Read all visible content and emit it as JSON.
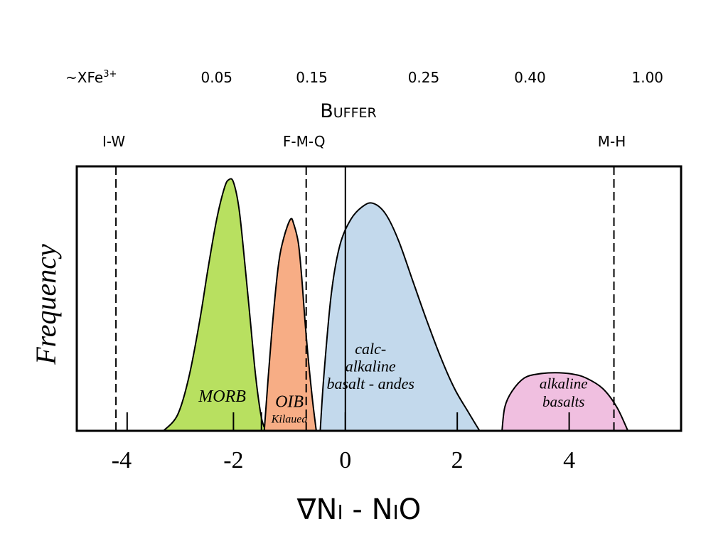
{
  "chart_data": {
    "type": "area",
    "title": "",
    "xlabel": "∇Ni - NiO",
    "ylabel": "Frequency",
    "xlim": [
      -4.8,
      6
    ],
    "ylim": [
      0,
      1
    ],
    "x_ticks": [
      -4,
      -2,
      0,
      2,
      4
    ],
    "minor_ticks": [
      -3.9,
      -2,
      -1.5,
      0,
      2,
      4
    ],
    "top_axis": {
      "label_prefix": "~XFe",
      "label_sup": "3+",
      "ticks": [
        {
          "x": -2.3,
          "label": "0.05"
        },
        {
          "x": -0.6,
          "label": "0.15"
        },
        {
          "x": 1.4,
          "label": "0.25"
        },
        {
          "x": 3.3,
          "label": "0.40"
        },
        {
          "x": 5.4,
          "label": "1.00"
        }
      ]
    },
    "buffer_header": "Buffer",
    "buffers": [
      {
        "name": "I-W",
        "x": -4.1
      },
      {
        "name": "F-M-Q",
        "x": -0.7
      },
      {
        "name": "M-H",
        "x": 4.8
      }
    ],
    "reference_line": {
      "x": 0,
      "top": 1.0,
      "style": "solid"
    },
    "series": [
      {
        "name": "MORB",
        "color": "#b8e060",
        "points": [
          [
            -3.25,
            0
          ],
          [
            -3.0,
            0.06
          ],
          [
            -2.8,
            0.2
          ],
          [
            -2.6,
            0.42
          ],
          [
            -2.45,
            0.62
          ],
          [
            -2.3,
            0.8
          ],
          [
            -2.16,
            0.92
          ],
          [
            -2.08,
            0.95
          ],
          [
            -2.0,
            0.94
          ],
          [
            -1.9,
            0.84
          ],
          [
            -1.8,
            0.64
          ],
          [
            -1.7,
            0.42
          ],
          [
            -1.6,
            0.2
          ],
          [
            -1.5,
            0.05
          ],
          [
            -1.42,
            0
          ]
        ]
      },
      {
        "name": "OIB",
        "sub_label": "Kilauea",
        "color": "#f7ad85",
        "points": [
          [
            -1.45,
            0
          ],
          [
            -1.32,
            0.36
          ],
          [
            -1.2,
            0.62
          ],
          [
            -1.1,
            0.73
          ],
          [
            -0.98,
            0.8
          ],
          [
            -0.92,
            0.78
          ],
          [
            -0.84,
            0.71
          ],
          [
            -0.78,
            0.58
          ],
          [
            -0.7,
            0.36
          ],
          [
            -0.6,
            0.14
          ],
          [
            -0.52,
            0
          ]
        ]
      },
      {
        "name": "calc-alkaline basalt - andes",
        "label_lines": [
          "calc-",
          "alkaline",
          "basalt - andes"
        ],
        "color": "#c3d9ec",
        "points": [
          [
            -0.45,
            0
          ],
          [
            -0.38,
            0.22
          ],
          [
            -0.25,
            0.52
          ],
          [
            -0.1,
            0.7
          ],
          [
            0.1,
            0.8
          ],
          [
            0.32,
            0.85
          ],
          [
            0.5,
            0.86
          ],
          [
            0.72,
            0.82
          ],
          [
            0.95,
            0.72
          ],
          [
            1.2,
            0.57
          ],
          [
            1.45,
            0.42
          ],
          [
            1.7,
            0.28
          ],
          [
            1.95,
            0.16
          ],
          [
            2.2,
            0.07
          ],
          [
            2.4,
            0
          ]
        ]
      },
      {
        "name": "alkaline basalts",
        "label_lines": [
          "alkaline",
          "basalts"
        ],
        "color": "#f0bfe0",
        "points": [
          [
            2.8,
            0
          ],
          [
            2.85,
            0.09
          ],
          [
            2.98,
            0.15
          ],
          [
            3.2,
            0.2
          ],
          [
            3.45,
            0.215
          ],
          [
            3.75,
            0.22
          ],
          [
            4.05,
            0.215
          ],
          [
            4.3,
            0.2
          ],
          [
            4.6,
            0.16
          ],
          [
            4.85,
            0.09
          ],
          [
            5.05,
            0
          ]
        ]
      }
    ],
    "grid": false,
    "legend": "none"
  }
}
